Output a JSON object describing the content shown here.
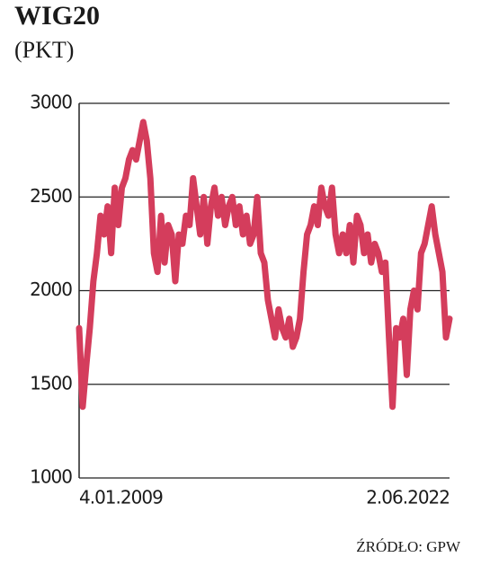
{
  "chart_data": {
    "type": "line",
    "title": "WIG20",
    "subtitle": "(PKT)",
    "source": "ŹRÓDŁO: GPW",
    "categories": [
      "4.01.2009",
      null,
      null,
      null,
      null,
      null,
      null,
      null,
      null,
      null,
      null,
      null,
      null,
      null,
      null,
      null,
      null,
      null,
      null,
      null,
      null,
      null,
      null,
      null,
      null,
      null,
      null,
      null,
      null,
      null,
      null,
      null,
      null,
      null,
      null,
      null,
      null,
      null,
      null,
      null,
      null,
      null,
      null,
      null,
      null,
      null,
      null,
      null,
      null,
      null,
      null,
      null,
      null,
      null,
      null,
      null,
      null,
      null,
      null,
      null,
      null,
      null,
      null,
      null,
      null,
      null,
      null,
      null,
      null,
      null,
      null,
      null,
      null,
      null,
      null,
      null,
      null,
      null,
      null,
      null,
      null,
      null,
      null,
      null,
      null,
      null,
      null,
      null,
      null,
      null,
      null,
      null,
      null,
      null,
      null,
      null,
      null,
      null,
      null,
      null,
      null,
      null,
      null,
      null,
      "2.06.2022"
    ],
    "values": [
      1800,
      1380,
      1600,
      1800,
      2050,
      2200,
      2400,
      2300,
      2450,
      2200,
      2550,
      2350,
      2550,
      2600,
      2700,
      2750,
      2700,
      2800,
      2900,
      2800,
      2600,
      2200,
      2100,
      2400,
      2150,
      2350,
      2300,
      2050,
      2300,
      2250,
      2400,
      2350,
      2600,
      2450,
      2300,
      2500,
      2250,
      2450,
      2550,
      2400,
      2500,
      2350,
      2450,
      2500,
      2350,
      2450,
      2300,
      2400,
      2250,
      2300,
      2500,
      2200,
      2150,
      1950,
      1850,
      1750,
      1900,
      1800,
      1750,
      1850,
      1700,
      1750,
      1850,
      2100,
      2300,
      2350,
      2450,
      2350,
      2550,
      2450,
      2400,
      2550,
      2300,
      2200,
      2300,
      2200,
      2350,
      2150,
      2400,
      2350,
      2200,
      2300,
      2150,
      2250,
      2200,
      2100,
      2150,
      1750,
      1380,
      1800,
      1750,
      1850,
      1550,
      1900,
      2000,
      1900,
      2200,
      2250,
      2350,
      2450,
      2300,
      2200,
      2100,
      1750,
      1850
    ],
    "color": "#d43d5c",
    "ylim": [
      1000,
      3000
    ],
    "yticks": [
      1000,
      1500,
      2000,
      2500,
      3000
    ],
    "grid": true
  }
}
